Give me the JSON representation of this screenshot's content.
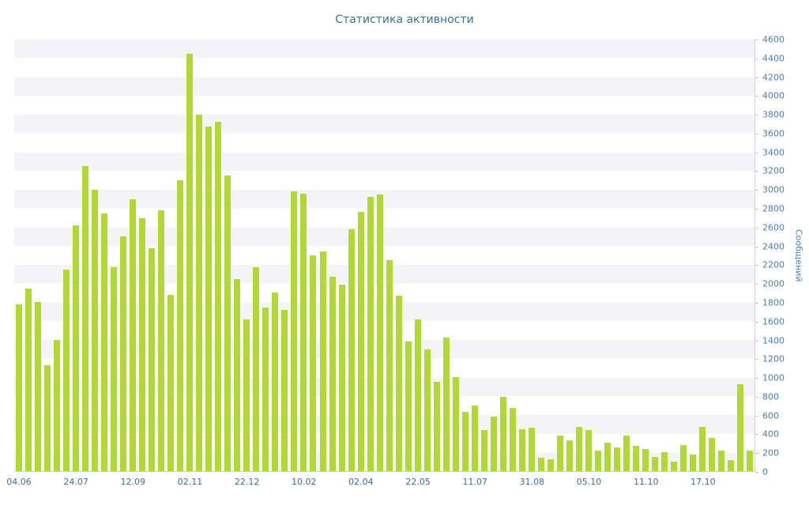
{
  "chart_data": {
    "type": "bar",
    "title": "Статистика активности",
    "xlabel": "",
    "ylabel": "Сообщений",
    "ylim": [
      0,
      4600
    ],
    "y_tick_step": 200,
    "grid": "alternating-horizontal-bands",
    "legend": "none",
    "bar_color": "#b1d834",
    "title_color": "#3d6d9e",
    "x_label_color": "#3d6d9e",
    "y_label_color": "#4a7db5",
    "x_tick_labels": [
      "04.06",
      "24.07",
      "12.09",
      "02.11",
      "22.12",
      "10.02",
      "02.04",
      "22.05",
      "11.07",
      "31.08",
      "05.10",
      "11.10",
      "17.10"
    ],
    "x_tick_every": 6,
    "values": [
      1780,
      1950,
      1800,
      1130,
      1400,
      2150,
      2620,
      3250,
      3000,
      2750,
      2170,
      2500,
      2900,
      2700,
      2380,
      2780,
      1880,
      3100,
      4450,
      3800,
      3670,
      3720,
      3150,
      2050,
      1620,
      2170,
      1740,
      1900,
      1720,
      2980,
      2960,
      2300,
      2340,
      2070,
      1990,
      2580,
      2760,
      2920,
      2950,
      2250,
      1870,
      1380,
      1620,
      1300,
      950,
      1420,
      1000,
      630,
      700,
      440,
      580,
      790,
      670,
      450,
      460,
      140,
      130,
      380,
      330,
      470,
      440,
      220,
      300,
      250,
      380,
      270,
      240,
      150,
      200,
      100,
      280,
      180,
      470,
      350,
      220,
      120,
      930,
      220
    ]
  }
}
